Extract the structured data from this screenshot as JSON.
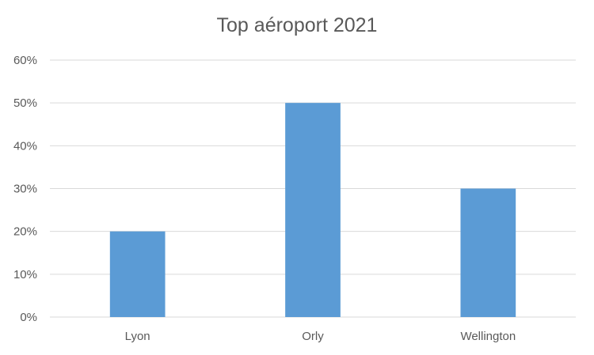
{
  "chart_data": {
    "type": "bar",
    "title": "Top aéroport 2021",
    "categories": [
      "Lyon",
      "Orly",
      "Wellington"
    ],
    "values": [
      20,
      50,
      30
    ],
    "xlabel": "",
    "ylabel": "",
    "ylim": [
      0,
      60
    ],
    "yticks": [
      0,
      10,
      20,
      30,
      40,
      50,
      60
    ],
    "ytick_labels": [
      "0%",
      "10%",
      "20%",
      "30%",
      "40%",
      "50%",
      "60%"
    ],
    "grid": true,
    "legend": "none",
    "bar_color": "#5b9bd5"
  }
}
